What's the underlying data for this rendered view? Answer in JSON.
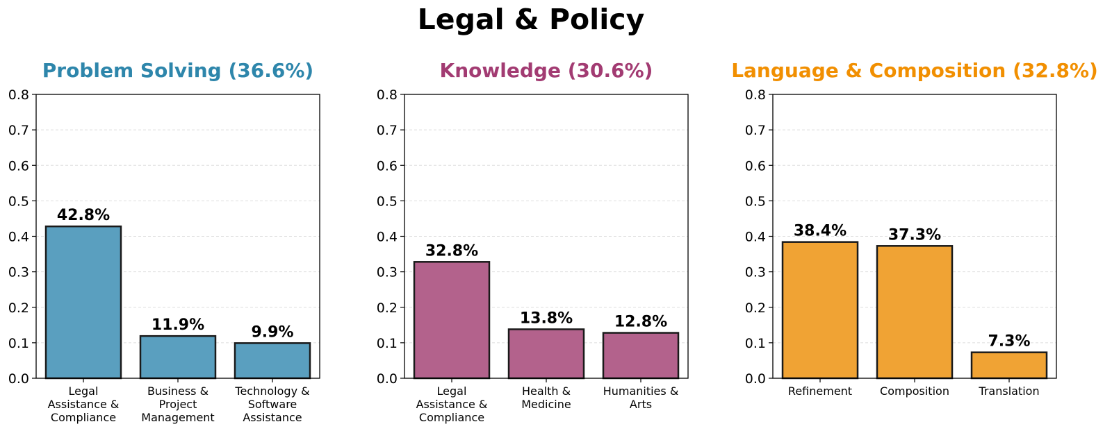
{
  "title": "Legal & Policy",
  "chart_data": [
    {
      "type": "bar",
      "title": "Problem Solving (36.6%)",
      "color": "#2E86AB",
      "bar_color": "#5A9FBF",
      "categories": [
        "Legal\nAssistance &\nCompliance",
        "Business &\nProject\nManagement",
        "Technology &\nSoftware\nAssistance"
      ],
      "values": [
        0.428,
        0.119,
        0.099
      ],
      "value_labels": [
        "42.8%",
        "11.9%",
        "9.9%"
      ],
      "ylim": [
        0,
        0.8
      ],
      "yticks": [
        "0.0",
        "0.1",
        "0.2",
        "0.3",
        "0.4",
        "0.5",
        "0.6",
        "0.7",
        "0.8"
      ],
      "grid": true
    },
    {
      "type": "bar",
      "title": "Knowledge (30.6%)",
      "color": "#A23B72",
      "bar_color": "#B3628C",
      "categories": [
        "Legal\nAssistance &\nCompliance",
        "Health &\nMedicine",
        "Humanities &\nArts"
      ],
      "values": [
        0.328,
        0.138,
        0.128
      ],
      "value_labels": [
        "32.8%",
        "13.8%",
        "12.8%"
      ],
      "ylim": [
        0,
        0.8
      ],
      "yticks": [
        "0.0",
        "0.1",
        "0.2",
        "0.3",
        "0.4",
        "0.5",
        "0.6",
        "0.7",
        "0.8"
      ],
      "grid": true
    },
    {
      "type": "bar",
      "title": "Language & Composition (32.8%)",
      "color": "#F18F01",
      "bar_color": "#F0A334",
      "categories": [
        "Refinement",
        "Composition",
        "Translation"
      ],
      "values": [
        0.384,
        0.373,
        0.073
      ],
      "value_labels": [
        "38.4%",
        "37.3%",
        "7.3%"
      ],
      "ylim": [
        0,
        0.8
      ],
      "yticks": [
        "0.0",
        "0.1",
        "0.2",
        "0.3",
        "0.4",
        "0.5",
        "0.6",
        "0.7",
        "0.8"
      ],
      "grid": true
    }
  ]
}
